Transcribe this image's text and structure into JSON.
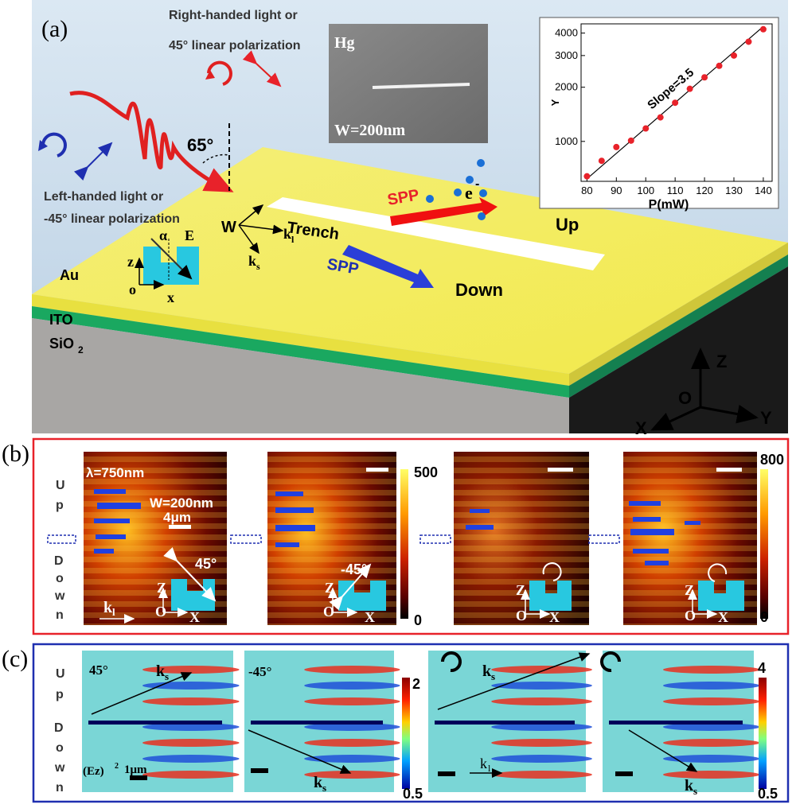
{
  "panel_a": {
    "label": "(a)",
    "right_handed_line1": "Right-handed light or",
    "right_handed_line2": "45° linear polarization",
    "left_handed_line1": "Left-handed light or",
    "left_handed_line2": "-45° linear polarization",
    "angle_label": "65°",
    "inset_hg": "Hg",
    "inset_w": "W=200nm",
    "trench": "Trench",
    "spp_up": "SPP",
    "spp_down": "SPP",
    "electron": "e",
    "electron_sup": "-",
    "up": "Up",
    "down": "Down",
    "w_label": "W",
    "kl": "k",
    "kl_sub": "l",
    "ks": "k",
    "ks_sub": "s",
    "alpha": "α",
    "e_field": "E",
    "z_small": "z",
    "o_small": "o",
    "x_small": "x",
    "layer_au": "Au",
    "layer_ito": "ITO",
    "layer_sio2": "SiO",
    "layer_sio2_sub": "2",
    "axis_z": "Z",
    "axis_o": "O",
    "axis_x": "X",
    "axis_y": "Y"
  },
  "chart_data": {
    "type": "scatter",
    "xlabel": "P(mW)",
    "ylabel": "Y",
    "annotation": "Slope=3.5",
    "xlim": [
      78,
      143
    ],
    "ylim": [
      600,
      4500
    ],
    "y_scale": "log",
    "x_ticks": [
      "80",
      "90",
      "100",
      "110",
      "120",
      "130",
      "140"
    ],
    "y_ticks": [
      "1000",
      "2000",
      "3000",
      "4000"
    ],
    "x_tick_values": [
      80,
      90,
      100,
      110,
      120,
      130,
      140
    ],
    "y_tick_values": [
      1000,
      2000,
      3000,
      4000
    ],
    "points": {
      "x": [
        80,
        85,
        90,
        95,
        100,
        105,
        110,
        115,
        120,
        125,
        130,
        135,
        140
      ],
      "y": [
        640,
        780,
        930,
        1010,
        1180,
        1360,
        1640,
        1960,
        2270,
        2630,
        3000,
        3580,
        4200
      ]
    },
    "fit_line": {
      "x": [
        80,
        140
      ],
      "y": [
        620,
        4350
      ]
    },
    "colors": {
      "points": "#e8222a",
      "line": "#000000"
    }
  },
  "panel_b": {
    "label": "(b)",
    "lambda": "λ=750nm",
    "w": "W=200nm",
    "scale": "4μm",
    "side_up": [
      "U",
      "p"
    ],
    "side_down": [
      "D",
      "o",
      "w",
      "n"
    ],
    "kl": "k",
    "kl_sub": "l",
    "pol_45": "45°",
    "pol_m45": "-45°",
    "cb1_top": "500",
    "cb1_bottom": "0",
    "cb2_top": "800",
    "cb2_bottom": "0",
    "z": "Z",
    "o": "O",
    "x": "X",
    "frame_color": "#e8222a"
  },
  "panel_c": {
    "label": "(c)",
    "pol_45": "45°",
    "pol_m45": "-45°",
    "ks": "k",
    "ks_sub": "s",
    "kl": "k",
    "kl_sub": "l",
    "ez": "(Ez)",
    "ez_sup": "2",
    "scale": "1μm",
    "side_up": [
      "U",
      "p"
    ],
    "side_down": [
      "D",
      "o",
      "w",
      "n"
    ],
    "cb1_top": "2",
    "cb1_bottom": "0.5",
    "cb2_top": "4",
    "cb2_bottom": "0.5",
    "frame_color": "#1f2fb0"
  }
}
